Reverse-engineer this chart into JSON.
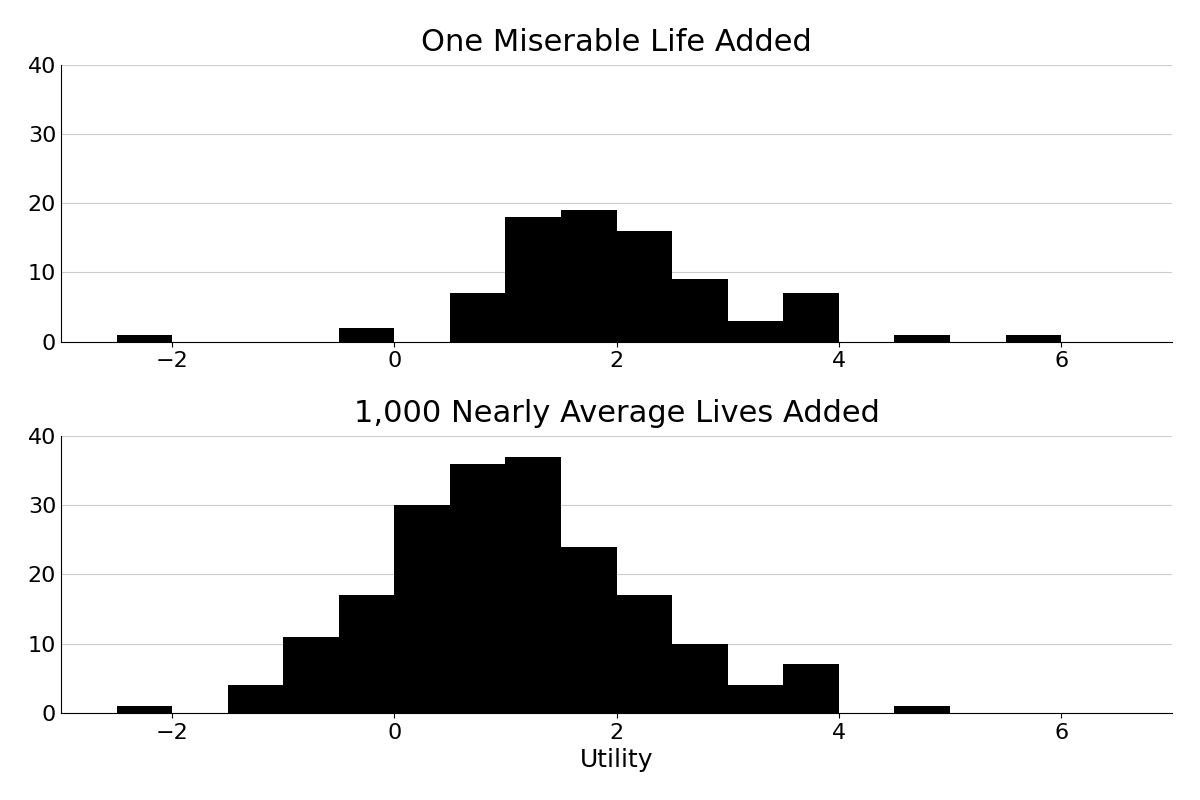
{
  "title1": "One Miserable Life Added",
  "title2": "1,000 Nearly Average Lives Added",
  "xlabel": "Utility",
  "bar_color": "#000000",
  "xlim": [
    -3,
    7
  ],
  "ylim": [
    0,
    40
  ],
  "xticks": [
    -2,
    0,
    2,
    4,
    6
  ],
  "yticks": [
    0,
    10,
    20,
    30,
    40
  ],
  "figsize": [
    12,
    8
  ],
  "dpi": 100,
  "plot1_bins": [
    -2.5,
    -2.0,
    -1.5,
    -1.0,
    -0.5,
    0.0,
    0.5,
    1.0,
    1.5,
    2.0,
    2.5,
    3.0,
    3.5,
    4.0,
    4.5,
    5.0,
    5.5,
    6.0,
    6.5
  ],
  "plot1_heights": [
    1,
    0,
    0,
    0,
    2,
    0,
    7,
    18,
    19,
    16,
    9,
    3,
    7,
    0,
    1,
    0,
    1,
    0
  ],
  "plot2_bins": [
    -2.5,
    -2.0,
    -1.5,
    -1.0,
    -0.5,
    0.0,
    0.5,
    1.0,
    1.5,
    2.0,
    2.5,
    3.0,
    3.5,
    4.0,
    4.5,
    5.0,
    5.5,
    6.0,
    6.5
  ],
  "plot2_heights": [
    1,
    0,
    4,
    11,
    17,
    30,
    36,
    37,
    24,
    17,
    10,
    4,
    7,
    0,
    1,
    0,
    0,
    0
  ],
  "grid_color": "#cccccc",
  "title_fontsize": 22,
  "label_fontsize": 18,
  "tick_fontsize": 16
}
